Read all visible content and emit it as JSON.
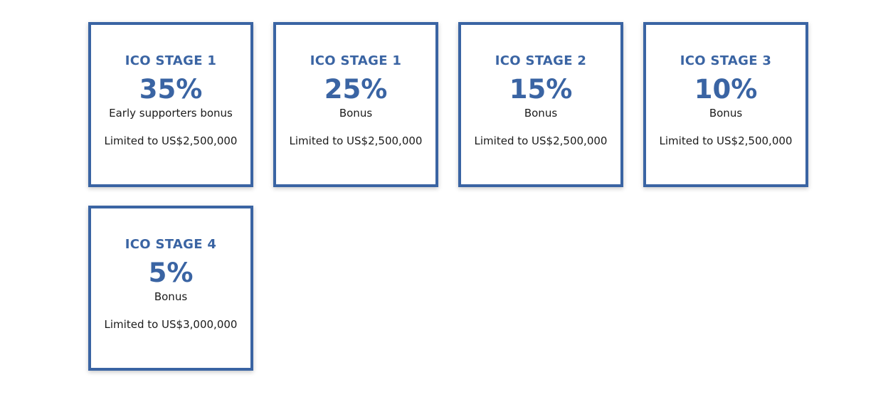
{
  "colors": {
    "accent": "#3a64a3",
    "text": "#1b1b1b",
    "background": "#ffffff"
  },
  "stages": [
    {
      "title": "ICO STAGE 1",
      "percent": "35%",
      "subtitle": "Early supporters bonus",
      "limit": "Limited to US$2,500,000"
    },
    {
      "title": "ICO STAGE 1",
      "percent": "25%",
      "subtitle": "Bonus",
      "limit": "Limited to US$2,500,000"
    },
    {
      "title": "ICO STAGE 2",
      "percent": "15%",
      "subtitle": "Bonus",
      "limit": "Limited to US$2,500,000"
    },
    {
      "title": "ICO STAGE 3",
      "percent": "10%",
      "subtitle": "Bonus",
      "limit": "Limited to US$2,500,000"
    },
    {
      "title": "ICO STAGE 4",
      "percent": "5%",
      "subtitle": "Bonus",
      "limit": "Limited to US$3,000,000"
    }
  ]
}
